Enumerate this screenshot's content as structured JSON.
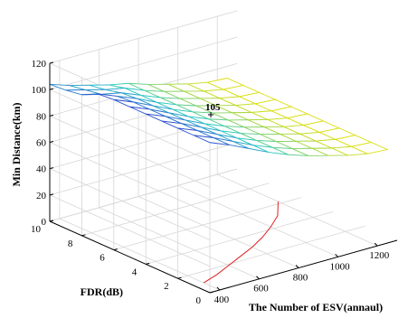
{
  "chart_data": {
    "type": "surface",
    "x": {
      "label": "The Number of ESV(annaul)",
      "ticks": [
        400,
        600,
        800,
        1000,
        1200
      ],
      "range": [
        350,
        1300
      ]
    },
    "y": {
      "label": "FDR(dB)",
      "ticks": [
        0,
        2,
        4,
        6,
        8,
        10
      ],
      "range": [
        0,
        10
      ]
    },
    "z": {
      "label": "Min Distance(km)",
      "ticks": [
        0,
        20,
        40,
        60,
        80,
        100,
        120
      ],
      "range": [
        0,
        120
      ]
    },
    "grid": true,
    "annotation": {
      "text": "105",
      "x": 900,
      "y": 6,
      "z": 105
    },
    "surface_x_values": [
      350,
      450,
      550,
      650,
      750,
      850,
      950,
      1050,
      1150,
      1250
    ],
    "surface_y_values": [
      0,
      1,
      2,
      3,
      4,
      5,
      6,
      7,
      8,
      9,
      10
    ],
    "surface_z_values": [
      [
        114,
        114,
        114,
        114,
        114,
        114,
        114,
        113,
        107,
        105,
        104
      ],
      [
        108,
        108,
        108,
        108,
        108,
        108,
        108,
        107,
        103,
        101,
        99
      ],
      [
        101,
        101,
        101,
        101,
        101,
        101,
        101,
        101,
        100,
        97,
        95
      ],
      [
        94,
        94,
        94,
        94,
        94,
        94,
        94,
        94,
        94,
        94,
        91
      ],
      [
        88,
        88,
        88,
        88,
        88,
        88,
        88,
        88,
        88,
        88,
        88
      ],
      [
        83,
        83,
        83,
        83,
        83,
        83,
        83,
        83,
        83,
        83,
        83
      ],
      [
        79,
        79,
        79,
        79,
        79,
        79,
        79,
        79,
        79,
        79,
        79
      ],
      [
        75,
        75,
        75,
        75,
        75,
        75,
        75,
        75,
        75,
        75,
        75
      ],
      [
        72,
        72,
        72,
        72,
        72,
        72,
        72,
        72,
        72,
        72,
        72
      ],
      [
        71,
        71,
        71,
        71,
        71,
        71,
        71,
        71,
        71,
        71,
        71
      ]
    ],
    "contour_line": {
      "x": [
        400,
        500,
        600,
        700,
        800,
        900,
        1000,
        1100,
        1200
      ],
      "y": [
        1,
        1.4,
        1.9,
        2.4,
        2.9,
        3.5,
        4.2,
        5.0,
        6.2
      ]
    },
    "colors": {
      "mesh_high": "#2a3cd0",
      "mesh_low": "#e8e000",
      "contour": "#e02020",
      "grid": "#d6d6d6",
      "axis": "#000000"
    }
  }
}
